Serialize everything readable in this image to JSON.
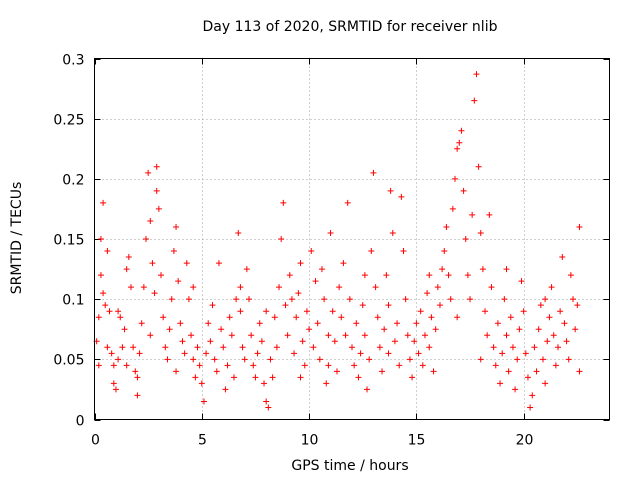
{
  "chart_data": {
    "type": "scatter",
    "title": "Day 113 of 2020, SRMTID for receiver nlib",
    "xlabel": "GPS time / hours",
    "ylabel": "SRMTID / TECUs",
    "xlim": [
      0,
      24
    ],
    "ylim": [
      0,
      0.3
    ],
    "x_ticks": [
      0,
      5,
      10,
      15,
      20
    ],
    "x_tick_labels": [
      "0",
      "5",
      "10",
      "15",
      "20"
    ],
    "y_ticks": [
      0,
      0.05,
      0.1,
      0.15,
      0.2,
      0.25,
      0.3
    ],
    "y_tick_labels": [
      "0",
      "0.05",
      "0.1",
      "0.15",
      "0.2",
      "0.25",
      "0.3"
    ],
    "grid": true,
    "marker": "plus",
    "color": "#ff0000",
    "series": [
      {
        "name": "SRMTID",
        "points": [
          [
            0.1,
            0.065
          ],
          [
            0.2,
            0.085
          ],
          [
            0.3,
            0.15
          ],
          [
            0.3,
            0.12
          ],
          [
            0.4,
            0.18
          ],
          [
            0.4,
            0.105
          ],
          [
            0.5,
            0.095
          ],
          [
            0.6,
            0.14
          ],
          [
            0.6,
            0.06
          ],
          [
            0.7,
            0.09
          ],
          [
            0.8,
            0.055
          ],
          [
            0.9,
            0.03
          ],
          [
            0.9,
            0.045
          ],
          [
            1.0,
            0.025
          ],
          [
            1.1,
            0.05
          ],
          [
            1.2,
            0.085
          ],
          [
            1.3,
            0.06
          ],
          [
            1.4,
            0.075
          ],
          [
            1.5,
            0.125
          ],
          [
            1.5,
            0.045
          ],
          [
            1.6,
            0.135
          ],
          [
            1.7,
            0.11
          ],
          [
            1.8,
            0.06
          ],
          [
            1.9,
            0.04
          ],
          [
            2.0,
            0.035
          ],
          [
            2.0,
            0.02
          ],
          [
            2.1,
            0.055
          ],
          [
            2.2,
            0.08
          ],
          [
            2.3,
            0.11
          ],
          [
            2.4,
            0.15
          ],
          [
            2.5,
            0.205
          ],
          [
            2.6,
            0.165
          ],
          [
            2.7,
            0.13
          ],
          [
            2.8,
            0.105
          ],
          [
            2.9,
            0.21
          ],
          [
            2.9,
            0.19
          ],
          [
            3.0,
            0.175
          ],
          [
            3.1,
            0.12
          ],
          [
            3.2,
            0.085
          ],
          [
            3.3,
            0.06
          ],
          [
            3.4,
            0.05
          ],
          [
            3.5,
            0.075
          ],
          [
            3.6,
            0.1
          ],
          [
            3.7,
            0.14
          ],
          [
            3.8,
            0.16
          ],
          [
            3.9,
            0.115
          ],
          [
            4.0,
            0.08
          ],
          [
            4.1,
            0.065
          ],
          [
            4.2,
            0.055
          ],
          [
            4.3,
            0.13
          ],
          [
            4.4,
            0.1
          ],
          [
            4.5,
            0.07
          ],
          [
            4.6,
            0.05
          ],
          [
            4.7,
            0.035
          ],
          [
            4.8,
            0.06
          ],
          [
            4.9,
            0.045
          ],
          [
            5.0,
            0.03
          ],
          [
            5.1,
            0.015
          ],
          [
            5.2,
            0.055
          ],
          [
            5.3,
            0.08
          ],
          [
            5.4,
            0.065
          ],
          [
            5.5,
            0.095
          ],
          [
            5.6,
            0.05
          ],
          [
            5.7,
            0.04
          ],
          [
            5.8,
            0.13
          ],
          [
            5.9,
            0.075
          ],
          [
            6.0,
            0.06
          ],
          [
            6.1,
            0.025
          ],
          [
            6.2,
            0.045
          ],
          [
            6.3,
            0.085
          ],
          [
            6.4,
            0.07
          ],
          [
            6.5,
            0.035
          ],
          [
            6.6,
            0.1
          ],
          [
            6.7,
            0.155
          ],
          [
            6.8,
            0.09
          ],
          [
            6.9,
            0.06
          ],
          [
            7.0,
            0.05
          ],
          [
            7.1,
            0.125
          ],
          [
            7.2,
            0.1
          ],
          [
            7.3,
            0.07
          ],
          [
            7.4,
            0.045
          ],
          [
            7.5,
            0.035
          ],
          [
            7.6,
            0.055
          ],
          [
            7.7,
            0.08
          ],
          [
            7.8,
            0.065
          ],
          [
            7.9,
            0.03
          ],
          [
            8.0,
            0.015
          ],
          [
            8.1,
            0.01
          ],
          [
            8.2,
            0.05
          ],
          [
            8.3,
            0.035
          ],
          [
            8.4,
            0.085
          ],
          [
            8.5,
            0.06
          ],
          [
            8.6,
            0.11
          ],
          [
            8.7,
            0.15
          ],
          [
            8.8,
            0.18
          ],
          [
            8.9,
            0.095
          ],
          [
            9.0,
            0.07
          ],
          [
            9.1,
            0.12
          ],
          [
            9.2,
            0.1
          ],
          [
            9.3,
            0.055
          ],
          [
            9.4,
            0.085
          ],
          [
            9.5,
            0.105
          ],
          [
            9.6,
            0.13
          ],
          [
            9.7,
            0.065
          ],
          [
            9.8,
            0.045
          ],
          [
            9.9,
            0.09
          ],
          [
            10.0,
            0.075
          ],
          [
            10.1,
            0.14
          ],
          [
            10.2,
            0.06
          ],
          [
            10.3,
            0.115
          ],
          [
            10.4,
            0.08
          ],
          [
            10.5,
            0.05
          ],
          [
            10.6,
            0.125
          ],
          [
            10.7,
            0.1
          ],
          [
            10.8,
            0.03
          ],
          [
            10.9,
            0.07
          ],
          [
            11.0,
            0.155
          ],
          [
            11.1,
            0.09
          ],
          [
            11.2,
            0.065
          ],
          [
            11.3,
            0.04
          ],
          [
            11.4,
            0.11
          ],
          [
            11.5,
            0.085
          ],
          [
            11.6,
            0.13
          ],
          [
            11.7,
            0.07
          ],
          [
            11.8,
            0.18
          ],
          [
            11.9,
            0.1
          ],
          [
            12.0,
            0.06
          ],
          [
            12.1,
            0.045
          ],
          [
            12.2,
            0.08
          ],
          [
            12.3,
            0.035
          ],
          [
            12.4,
            0.055
          ],
          [
            12.5,
            0.095
          ],
          [
            12.6,
            0.07
          ],
          [
            12.7,
            0.025
          ],
          [
            12.8,
            0.05
          ],
          [
            12.9,
            0.14
          ],
          [
            13.0,
            0.205
          ],
          [
            13.1,
            0.11
          ],
          [
            13.2,
            0.085
          ],
          [
            13.3,
            0.06
          ],
          [
            13.4,
            0.04
          ],
          [
            13.5,
            0.075
          ],
          [
            13.6,
            0.12
          ],
          [
            13.7,
            0.095
          ],
          [
            13.8,
            0.19
          ],
          [
            13.9,
            0.155
          ],
          [
            14.0,
            0.065
          ],
          [
            14.1,
            0.08
          ],
          [
            14.2,
            0.045
          ],
          [
            14.3,
            0.185
          ],
          [
            14.4,
            0.14
          ],
          [
            14.5,
            0.1
          ],
          [
            14.6,
            0.07
          ],
          [
            14.7,
            0.05
          ],
          [
            14.8,
            0.035
          ],
          [
            14.9,
            0.065
          ],
          [
            15.0,
            0.08
          ],
          [
            15.1,
            0.055
          ],
          [
            15.2,
            0.09
          ],
          [
            15.3,
            0.045
          ],
          [
            15.4,
            0.07
          ],
          [
            15.5,
            0.105
          ],
          [
            15.6,
            0.06
          ],
          [
            15.7,
            0.085
          ],
          [
            15.8,
            0.04
          ],
          [
            15.9,
            0.075
          ],
          [
            16.0,
            0.11
          ],
          [
            16.1,
            0.095
          ],
          [
            16.2,
            0.125
          ],
          [
            16.3,
            0.14
          ],
          [
            16.4,
            0.16
          ],
          [
            16.5,
            0.12
          ],
          [
            16.6,
            0.1
          ],
          [
            16.7,
            0.175
          ],
          [
            16.8,
            0.2
          ],
          [
            16.9,
            0.225
          ],
          [
            17.0,
            0.23
          ],
          [
            17.1,
            0.24
          ],
          [
            17.2,
            0.19
          ],
          [
            17.3,
            0.15
          ],
          [
            17.4,
            0.12
          ],
          [
            17.5,
            0.1
          ],
          [
            17.6,
            0.17
          ],
          [
            17.7,
            0.265
          ],
          [
            17.8,
            0.287
          ],
          [
            17.9,
            0.21
          ],
          [
            18.0,
            0.155
          ],
          [
            18.1,
            0.125
          ],
          [
            18.2,
            0.09
          ],
          [
            18.3,
            0.07
          ],
          [
            18.4,
            0.17
          ],
          [
            18.5,
            0.11
          ],
          [
            18.6,
            0.06
          ],
          [
            18.7,
            0.045
          ],
          [
            18.8,
            0.08
          ],
          [
            18.9,
            0.03
          ],
          [
            19.0,
            0.055
          ],
          [
            19.1,
            0.1
          ],
          [
            19.2,
            0.07
          ],
          [
            19.3,
            0.04
          ],
          [
            19.4,
            0.085
          ],
          [
            19.5,
            0.06
          ],
          [
            19.6,
            0.025
          ],
          [
            19.7,
            0.05
          ],
          [
            19.8,
            0.075
          ],
          [
            19.9,
            0.115
          ],
          [
            20.0,
            0.09
          ],
          [
            20.1,
            0.055
          ],
          [
            20.2,
            0.035
          ],
          [
            20.3,
            0.01
          ],
          [
            20.4,
            0.02
          ],
          [
            20.5,
            0.06
          ],
          [
            20.6,
            0.04
          ],
          [
            20.7,
            0.075
          ],
          [
            20.8,
            0.095
          ],
          [
            20.9,
            0.05
          ],
          [
            21.0,
            0.03
          ],
          [
            21.1,
            0.065
          ],
          [
            21.2,
            0.085
          ],
          [
            21.3,
            0.11
          ],
          [
            21.4,
            0.07
          ],
          [
            21.5,
            0.045
          ],
          [
            21.6,
            0.06
          ],
          [
            21.7,
            0.09
          ],
          [
            21.8,
            0.135
          ],
          [
            21.9,
            0.08
          ],
          [
            22.0,
            0.065
          ],
          [
            22.1,
            0.05
          ],
          [
            22.2,
            0.12
          ],
          [
            22.3,
            0.1
          ],
          [
            22.4,
            0.075
          ],
          [
            22.5,
            0.095
          ],
          [
            22.6,
            0.16
          ],
          [
            22.6,
            0.04
          ],
          [
            0.2,
            0.045
          ],
          [
            1.1,
            0.09
          ],
          [
            2.6,
            0.07
          ],
          [
            3.8,
            0.04
          ],
          [
            6.8,
            0.11
          ],
          [
            9.6,
            0.035
          ],
          [
            12.6,
            0.12
          ],
          [
            15.6,
            0.12
          ],
          [
            16.9,
            0.085
          ],
          [
            19.2,
            0.125
          ],
          [
            21.0,
            0.1
          ],
          [
            8.0,
            0.09
          ],
          [
            4.6,
            0.11
          ],
          [
            10.9,
            0.045
          ],
          [
            13.7,
            0.055
          ],
          [
            18.0,
            0.05
          ]
        ]
      }
    ]
  }
}
